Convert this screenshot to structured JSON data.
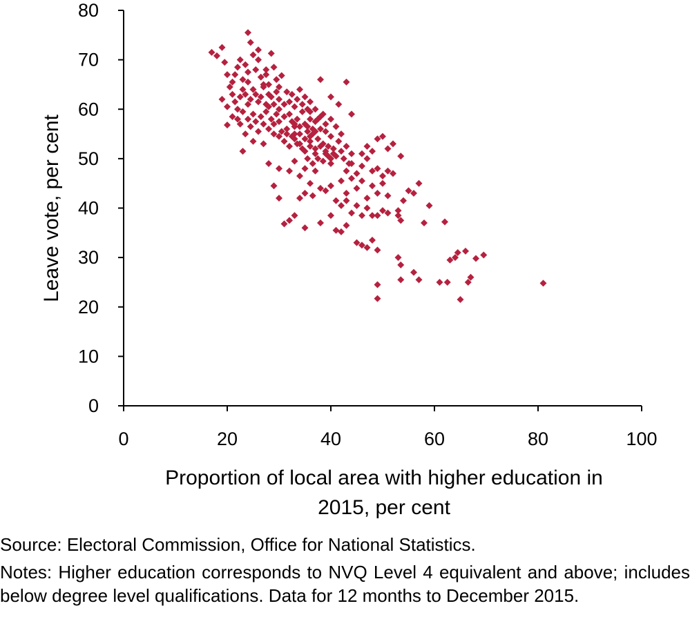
{
  "chart_data": {
    "type": "scatter",
    "title": "",
    "xlabel_lines": [
      "Proportion of local area with higher education in",
      "2015, per cent"
    ],
    "ylabel": "Leave vote, per cent",
    "xlim": [
      0,
      100
    ],
    "ylim": [
      0,
      80
    ],
    "x_ticks": [
      "0",
      "20",
      "40",
      "60",
      "80",
      "100"
    ],
    "y_ticks": [
      "0",
      "10",
      "20",
      "30",
      "40",
      "50",
      "60",
      "70",
      "80"
    ],
    "grid": false,
    "legend": "none",
    "marker": "diamond",
    "color": "#b5213f",
    "points": [
      [
        17,
        71.5
      ],
      [
        18,
        70.8
      ],
      [
        19,
        72.5
      ],
      [
        19.5,
        69.5
      ],
      [
        20,
        67
      ],
      [
        20.5,
        64.5
      ],
      [
        20,
        60.5
      ],
      [
        19,
        62
      ],
      [
        20,
        56.8
      ],
      [
        21,
        58.5
      ],
      [
        21,
        63
      ],
      [
        21.5,
        67
      ],
      [
        22,
        68.5
      ],
      [
        22.5,
        70
      ],
      [
        23,
        66
      ],
      [
        23.5,
        69
      ],
      [
        24,
        67.5
      ],
      [
        24,
        75.5
      ],
      [
        24.5,
        73.5
      ],
      [
        25,
        71
      ],
      [
        25.5,
        68
      ],
      [
        26,
        70
      ],
      [
        26.5,
        66.5
      ],
      [
        27,
        65
      ],
      [
        27.5,
        67
      ],
      [
        28,
        63
      ],
      [
        28.5,
        71.3
      ],
      [
        29,
        68.5
      ],
      [
        29.5,
        66
      ],
      [
        30,
        64.5
      ],
      [
        30.5,
        66.8
      ],
      [
        21.5,
        61.5
      ],
      [
        22,
        60
      ],
      [
        22.5,
        62.5
      ],
      [
        23,
        64
      ],
      [
        23.5,
        63
      ],
      [
        24,
        61
      ],
      [
        24.5,
        62
      ],
      [
        25,
        64
      ],
      [
        25.5,
        63
      ],
      [
        26,
        61.5
      ],
      [
        26.5,
        62.5
      ],
      [
        27,
        64.5
      ],
      [
        27.5,
        61
      ],
      [
        28,
        65
      ],
      [
        28.5,
        62.5
      ],
      [
        29,
        61
      ],
      [
        29.5,
        63.5
      ],
      [
        30,
        62
      ],
      [
        31,
        61
      ],
      [
        22,
        58
      ],
      [
        22.5,
        57
      ],
      [
        23,
        59.5
      ],
      [
        23.5,
        55
      ],
      [
        24,
        58
      ],
      [
        24.5,
        56.5
      ],
      [
        25,
        59
      ],
      [
        25.5,
        57.5
      ],
      [
        26,
        55.5
      ],
      [
        26.5,
        58.5
      ],
      [
        27,
        57
      ],
      [
        27.5,
        59.5
      ],
      [
        28,
        56
      ],
      [
        28.5,
        58
      ],
      [
        29,
        55
      ],
      [
        29.5,
        59
      ],
      [
        30,
        57.5
      ],
      [
        30.5,
        55.5
      ],
      [
        31,
        58.5
      ],
      [
        31.5,
        56
      ],
      [
        32,
        59
      ],
      [
        32.5,
        57.5
      ],
      [
        33,
        55
      ],
      [
        33.5,
        58
      ],
      [
        34,
        56.5
      ],
      [
        34.5,
        59.5
      ],
      [
        35,
        57
      ],
      [
        35.5,
        55.5
      ],
      [
        36,
        58
      ],
      [
        36.5,
        56
      ],
      [
        32,
        61.5
      ],
      [
        32.5,
        63
      ],
      [
        33,
        60.5
      ],
      [
        33.5,
        62
      ],
      [
        34,
        64
      ],
      [
        34.5,
        61
      ],
      [
        35,
        62.5
      ],
      [
        35.5,
        60
      ],
      [
        36,
        61.5
      ],
      [
        37,
        60
      ],
      [
        31,
        53.5
      ],
      [
        31.5,
        55
      ],
      [
        32,
        52.5
      ],
      [
        32.5,
        54.5
      ],
      [
        33,
        56.5
      ],
      [
        33.5,
        53
      ],
      [
        34,
        55
      ],
      [
        34.5,
        52
      ],
      [
        35,
        54
      ],
      [
        35.5,
        56.5
      ],
      [
        36,
        53.5
      ],
      [
        36.5,
        55
      ],
      [
        37,
        52
      ],
      [
        37.5,
        54
      ],
      [
        38,
        56
      ],
      [
        38.5,
        53
      ],
      [
        39,
        55.5
      ],
      [
        39.5,
        52.5
      ],
      [
        40,
        54.5
      ],
      [
        40.5,
        51
      ],
      [
        35,
        51.5
      ],
      [
        35.5,
        50
      ],
      [
        36,
        52.5
      ],
      [
        36.5,
        49
      ],
      [
        37,
        51
      ],
      [
        37.5,
        50
      ],
      [
        38,
        52.5
      ],
      [
        38.5,
        49.5
      ],
      [
        39,
        51.5
      ],
      [
        39.5,
        50.5
      ],
      [
        40,
        49
      ],
      [
        40.5,
        52
      ],
      [
        41,
        50.5
      ],
      [
        41.5,
        53.5
      ],
      [
        42,
        51.5
      ],
      [
        42.5,
        50
      ],
      [
        43,
        52.5
      ],
      [
        43.5,
        49
      ],
      [
        44,
        51
      ],
      [
        37,
        57.5
      ],
      [
        38,
        58.5
      ],
      [
        39,
        57
      ],
      [
        40,
        58
      ],
      [
        41,
        56.5
      ],
      [
        42,
        55
      ],
      [
        36,
        54.5
      ],
      [
        37,
        55.5
      ],
      [
        34,
        53
      ],
      [
        33,
        54
      ],
      [
        30,
        54.5
      ],
      [
        27,
        53
      ],
      [
        25,
        53.5
      ],
      [
        23,
        51.5
      ],
      [
        28,
        49
      ],
      [
        30,
        48
      ],
      [
        29,
        44.5
      ],
      [
        30,
        42
      ],
      [
        32,
        47.5
      ],
      [
        33,
        49.5
      ],
      [
        34,
        46.5
      ],
      [
        35,
        48
      ],
      [
        36,
        45
      ],
      [
        37,
        47.5
      ],
      [
        38,
        44
      ],
      [
        36.5,
        42.5
      ],
      [
        35,
        43
      ],
      [
        34,
        42
      ],
      [
        39,
        43.5
      ],
      [
        40,
        44.5
      ],
      [
        41,
        41.5
      ],
      [
        42,
        45.5
      ],
      [
        43,
        43
      ],
      [
        44,
        46
      ],
      [
        45,
        44
      ],
      [
        46,
        45.5
      ],
      [
        47,
        42
      ],
      [
        48,
        44.5
      ],
      [
        49,
        43
      ],
      [
        50,
        45
      ],
      [
        51,
        42.5
      ],
      [
        43,
        47.5
      ],
      [
        44,
        49
      ],
      [
        45,
        47
      ],
      [
        46,
        48.5
      ],
      [
        47,
        50
      ],
      [
        48,
        47.5
      ],
      [
        49,
        48
      ],
      [
        50,
        46.5
      ],
      [
        51,
        47.5
      ],
      [
        52,
        47
      ],
      [
        46,
        51
      ],
      [
        47,
        52.5
      ],
      [
        48,
        51.5
      ],
      [
        49,
        54
      ],
      [
        50,
        54.5
      ],
      [
        51,
        52
      ],
      [
        52,
        53
      ],
      [
        53.5,
        50.5
      ],
      [
        42,
        40.5
      ],
      [
        43,
        41.5
      ],
      [
        44,
        39
      ],
      [
        45,
        40.5
      ],
      [
        46,
        38.5
      ],
      [
        47,
        40
      ],
      [
        48,
        38.5
      ],
      [
        49,
        38.5
      ],
      [
        50,
        39.5
      ],
      [
        51,
        39
      ],
      [
        53,
        39.5
      ],
      [
        54,
        41.5
      ],
      [
        55,
        43.5
      ],
      [
        57,
        45
      ],
      [
        53,
        38.5
      ],
      [
        53.5,
        37.5
      ],
      [
        56,
        43
      ],
      [
        58,
        37
      ],
      [
        59,
        40.5
      ],
      [
        62,
        37.2
      ],
      [
        31,
        36.8
      ],
      [
        32,
        37.5
      ],
      [
        33,
        38.5
      ],
      [
        35,
        36
      ],
      [
        38,
        37
      ],
      [
        40,
        38.5
      ],
      [
        41,
        35.5
      ],
      [
        42,
        35.2
      ],
      [
        43,
        36.5
      ],
      [
        45,
        33
      ],
      [
        46,
        32.5
      ],
      [
        47,
        32
      ],
      [
        48,
        33.5
      ],
      [
        49,
        31.5
      ],
      [
        53,
        30
      ],
      [
        53.5,
        28.5
      ],
      [
        53.5,
        25.5
      ],
      [
        56,
        27
      ],
      [
        57,
        25.5
      ],
      [
        61,
        25
      ],
      [
        62.5,
        25
      ],
      [
        63,
        29.5
      ],
      [
        64,
        30
      ],
      [
        64.5,
        31
      ],
      [
        65,
        21.5
      ],
      [
        66,
        31.3
      ],
      [
        66.5,
        25
      ],
      [
        67,
        26
      ],
      [
        68,
        29.8
      ],
      [
        69.5,
        30.5
      ],
      [
        81,
        24.8
      ],
      [
        49,
        24.5
      ],
      [
        49,
        21.7
      ],
      [
        38,
        66
      ],
      [
        43,
        65.5
      ],
      [
        40,
        62.5
      ],
      [
        41.5,
        61
      ],
      [
        44,
        59
      ],
      [
        30,
        60
      ],
      [
        31.5,
        63.5
      ],
      [
        27.5,
        68
      ],
      [
        26,
        72
      ],
      [
        36,
        59.5
      ],
      [
        37.5,
        58
      ],
      [
        38.5,
        59
      ],
      [
        33,
        57
      ],
      [
        28,
        60.5
      ],
      [
        29,
        57
      ],
      [
        24,
        65.5
      ],
      [
        21,
        65.5
      ],
      [
        39,
        51
      ],
      [
        40,
        50
      ]
    ]
  },
  "source_text": "Source: Electoral Commission, Office for National Statistics.",
  "notes_text": "Notes: Higher education corresponds to NVQ Level 4 equivalent and above; includes below degree level qualifications. Data for 12 months to December 2015."
}
